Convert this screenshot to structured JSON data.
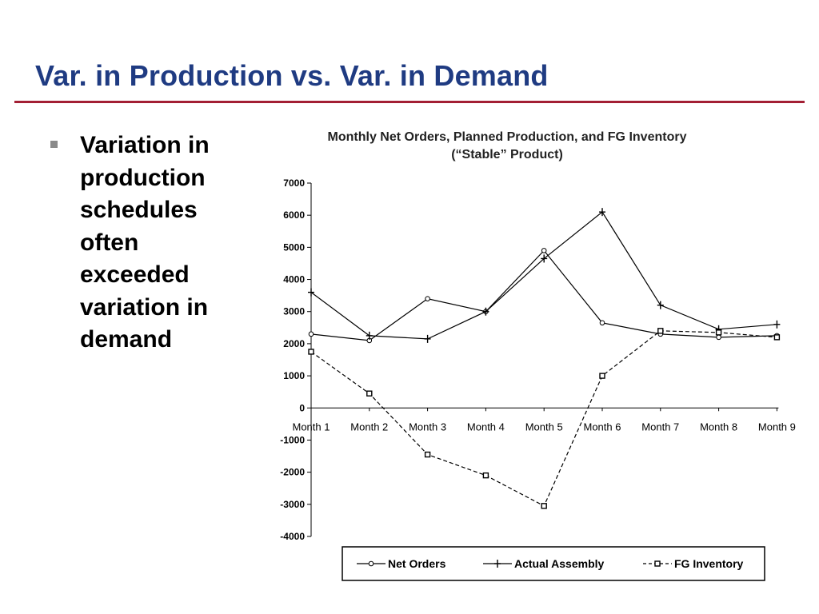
{
  "slide": {
    "title": "Var. in Production vs. Var. in Demand",
    "bullet": "Variation in production schedules often exceeded variation in demand"
  },
  "colors": {
    "title": "#1f3b82",
    "rule": "#a31f34",
    "bullet": "#8a8a8a",
    "series": "#000000"
  },
  "chart_data": {
    "type": "line",
    "title": "Monthly Net Orders, Planned Production, and FG Inventory",
    "subtitle": "(“Stable” Product)",
    "categories": [
      "Month 1",
      "Month 2",
      "Month 3",
      "Month 4",
      "Month 5",
      "Month 6",
      "Month 7",
      "Month 8",
      "Month 9"
    ],
    "yticks": [
      "7000",
      "6000",
      "5000",
      "4000",
      "3000",
      "2000",
      "1000",
      "0",
      "-1000",
      "-2000",
      "-3000",
      "-4000"
    ],
    "ylim": [
      -4000,
      7000
    ],
    "grid": false,
    "legend_position": "bottom",
    "series": [
      {
        "name": "Net Orders",
        "marker": "circle",
        "line": "solid",
        "values": [
          2300,
          2100,
          3400,
          3000,
          4900,
          2650,
          2300,
          2200,
          2250
        ]
      },
      {
        "name": "Actual Assembly",
        "marker": "plus",
        "line": "solid",
        "values": [
          3600,
          2250,
          2150,
          3000,
          4650,
          6100,
          3200,
          2450,
          2600
        ]
      },
      {
        "name": "FG Inventory",
        "marker": "square",
        "line": "dashed",
        "values": [
          1750,
          450,
          -1450,
          -2100,
          -3050,
          1000,
          2400,
          2350,
          2200
        ]
      }
    ]
  }
}
